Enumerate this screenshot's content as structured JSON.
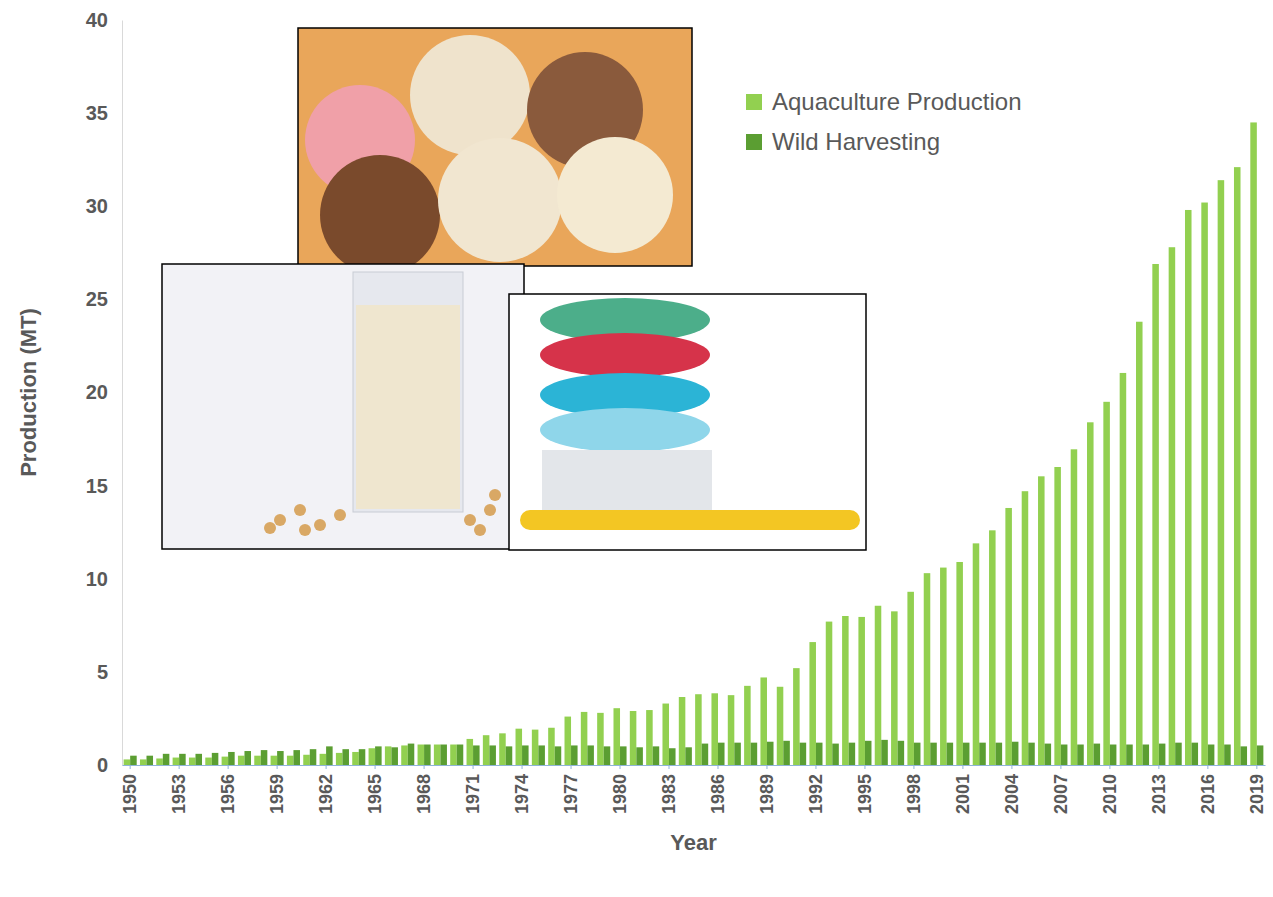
{
  "chart_data": {
    "type": "bar",
    "x_label": "Year",
    "y_label": "Production (MT)",
    "categories": [
      "1950",
      null,
      null,
      "1953",
      null,
      null,
      "1956",
      null,
      null,
      "1959",
      null,
      null,
      "1962",
      null,
      null,
      "1965",
      null,
      null,
      "1968",
      null,
      null,
      "1971",
      null,
      null,
      "1974",
      null,
      null,
      "1977",
      null,
      null,
      "1980",
      null,
      null,
      "1983",
      null,
      null,
      "1986",
      null,
      null,
      "1989",
      null,
      null,
      "1992",
      null,
      null,
      "1995",
      null,
      null,
      "1998",
      null,
      null,
      "2001",
      null,
      null,
      "2004",
      null,
      null,
      "2007",
      null,
      null,
      "2010",
      null,
      null,
      "2013",
      null,
      null,
      "2016",
      null,
      null,
      "2019"
    ],
    "series": [
      {
        "name": "Aquaculture Production",
        "color": "#92d050",
        "values": [
          0.3,
          0.3,
          0.35,
          0.4,
          0.4,
          0.4,
          0.45,
          0.5,
          0.5,
          0.5,
          0.5,
          0.55,
          0.6,
          0.65,
          0.7,
          0.9,
          1.0,
          1.05,
          1.1,
          1.1,
          1.1,
          1.4,
          1.6,
          1.7,
          1.95,
          1.9,
          2.0,
          2.6,
          2.85,
          2.8,
          3.05,
          2.9,
          2.95,
          3.3,
          3.65,
          3.8,
          3.85,
          3.75,
          4.25,
          4.7,
          4.2,
          5.2,
          6.6,
          7.7,
          8.0,
          7.95,
          8.55,
          8.25,
          9.3,
          10.3,
          10.6,
          10.9,
          11.9,
          12.6,
          13.8,
          14.7,
          15.5,
          16.0,
          16.95,
          18.4,
          19.5,
          21.05,
          23.8,
          26.9,
          27.8,
          29.8,
          30.2,
          31.4,
          32.1,
          34.5
        ]
      },
      {
        "name": "Wild Harvesting",
        "color": "#5b9e32",
        "values": [
          0.5,
          0.5,
          0.6,
          0.6,
          0.6,
          0.65,
          0.7,
          0.75,
          0.8,
          0.75,
          0.8,
          0.85,
          1.0,
          0.85,
          0.85,
          1.0,
          0.95,
          1.15,
          1.1,
          1.1,
          1.1,
          1.05,
          1.05,
          1.0,
          1.05,
          1.05,
          1.0,
          1.05,
          1.05,
          1.0,
          1.0,
          0.95,
          1.0,
          0.9,
          0.95,
          1.15,
          1.2,
          1.2,
          1.2,
          1.25,
          1.3,
          1.2,
          1.2,
          1.15,
          1.2,
          1.3,
          1.35,
          1.3,
          1.2,
          1.2,
          1.2,
          1.2,
          1.2,
          1.2,
          1.25,
          1.2,
          1.15,
          1.1,
          1.1,
          1.15,
          1.1,
          1.1,
          1.1,
          1.15,
          1.2,
          1.2,
          1.1,
          1.1,
          1.0,
          1.05
        ]
      }
    ],
    "ylim": [
      0,
      40
    ],
    "yticks": [
      0,
      5,
      10,
      15,
      20,
      25,
      30,
      35,
      40
    ],
    "grid": false,
    "legend": "upper-right"
  }
}
